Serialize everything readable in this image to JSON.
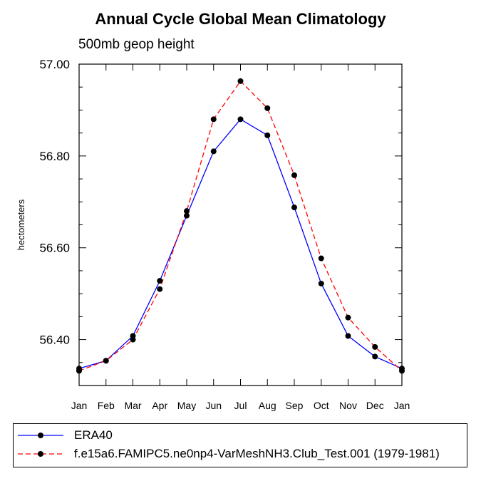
{
  "chart_data": {
    "type": "line",
    "title": "Annual Cycle Global Mean Climatology",
    "subtitle": "500mb geop height",
    "ylabel": "hectometers",
    "xlabel": "",
    "categories": [
      "Jan",
      "Feb",
      "Mar",
      "Apr",
      "May",
      "Jun",
      "Jul",
      "Aug",
      "Sep",
      "Oct",
      "Nov",
      "Dec",
      "Jan"
    ],
    "ylim": [
      56.3,
      57.0
    ],
    "yticks": [
      "56.40",
      "56.60",
      "56.80",
      "57.00"
    ],
    "ytick_values": [
      56.4,
      56.6,
      56.8,
      57.0
    ],
    "series": [
      {
        "name": "ERA40",
        "color": "#0000ff",
        "dash": "solid",
        "values": [
          56.337,
          56.354,
          56.408,
          56.528,
          56.67,
          56.81,
          56.88,
          56.845,
          56.688,
          56.522,
          56.408,
          56.363,
          56.337
        ]
      },
      {
        "name": "f.e15a6.FAMIPC5.ne0np4-VarMeshNH3.Club_Test.001 (1979-1981)",
        "color": "#ff0000",
        "dash": "dashed",
        "values": [
          56.332,
          56.354,
          56.4,
          56.51,
          56.68,
          56.88,
          56.963,
          56.904,
          56.758,
          56.577,
          56.448,
          56.384,
          56.332
        ]
      }
    ],
    "legend_position": "bottom",
    "grid": false
  }
}
